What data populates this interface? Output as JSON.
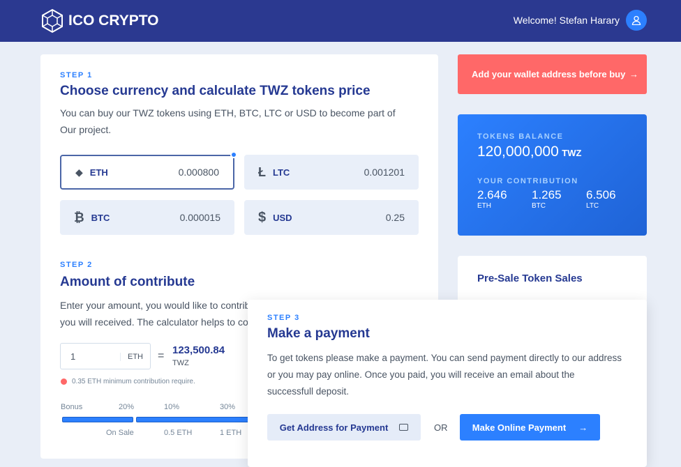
{
  "header": {
    "brand": "ICO CRYPTO",
    "welcome": "Welcome! Stefan Harary"
  },
  "step1": {
    "label": "STEP 1",
    "title": "Choose currency and calculate TWZ tokens price",
    "desc": "You can buy our TWZ tokens using ETH, BTC, LTC or USD to become part of Our project.",
    "currencies": [
      {
        "name": "ETH",
        "value": "0.000800",
        "icon": "ethereum-icon",
        "selected": true
      },
      {
        "name": "LTC",
        "value": "0.001201",
        "icon": "litecoin-icon"
      },
      {
        "name": "BTC",
        "value": "0.000015",
        "icon": "bitcoin-icon"
      },
      {
        "name": "USD",
        "value": "0.25",
        "icon": "dollar-icon"
      }
    ]
  },
  "step2": {
    "label": "STEP 2",
    "title": "Amount of contribute",
    "desc": "Enter your amount, you would like to contribute and calculate the amount of token you will received. The calculator helps to co",
    "amount": "1",
    "unit": "ETH",
    "equals": "=",
    "tokens": "123,500.84",
    "token_unit": "TWZ",
    "note": "0.35 ETH minimum contribution require.",
    "bonus_label": "Bonus",
    "bonuses": [
      "20%",
      "10%",
      "30%"
    ],
    "tiers": [
      "On Sale",
      "0.5 ETH",
      "1 ETH"
    ]
  },
  "wallet_alert": "Add your wallet address before buy",
  "balance": {
    "label": "TOKENS BALANCE",
    "amount": "120,000,000",
    "unit": "TWZ",
    "contrib_label": "YOUR CONTRIBUTION",
    "contribs": [
      {
        "v": "2.646",
        "c": "ETH"
      },
      {
        "v": "1.265",
        "c": "BTC"
      },
      {
        "v": "6.506",
        "c": "LTC"
      }
    ]
  },
  "presale": {
    "title": "Pre-Sale Token Sales"
  },
  "step3": {
    "label": "STEP 3",
    "title": "Make a payment",
    "desc": "To get tokens please make a payment. You can send payment directly to our address or you may pay online. Once you paid, you will receive an email about the successfull deposit.",
    "address_btn": "Get Address for Payment",
    "or": "OR",
    "online_btn": "Make Online Payment"
  },
  "colors": {
    "header": "#2b3990",
    "accent": "#2c80ff",
    "alert": "#ff6868"
  }
}
